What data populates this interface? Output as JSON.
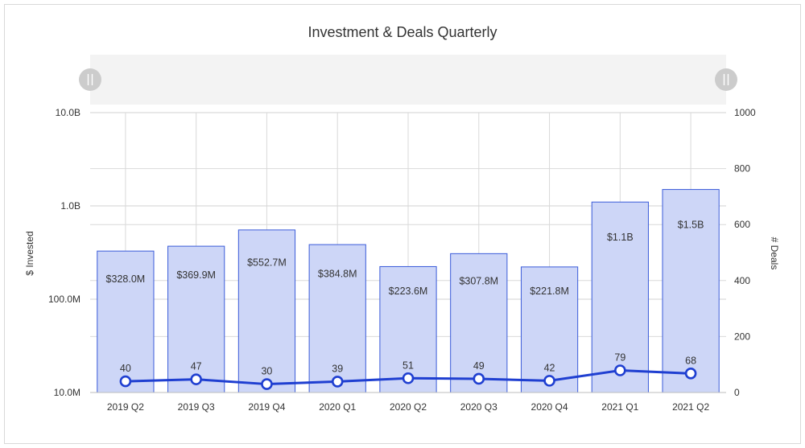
{
  "chart_data": {
    "type": "bar",
    "title": "Investment & Deals Quarterly",
    "categories": [
      "2019 Q2",
      "2019 Q3",
      "2019 Q4",
      "2020 Q1",
      "2020 Q2",
      "2020 Q3",
      "2020 Q4",
      "2021 Q1",
      "2021 Q2"
    ],
    "series": [
      {
        "type": "bar",
        "axis": "left",
        "scale": "log",
        "values": [
          328000000,
          369900000,
          552700000,
          384800000,
          223600000,
          307800000,
          221800000,
          1100000000,
          1500000000
        ],
        "labels": [
          "$328.0M",
          "$369.9M",
          "$552.7M",
          "$384.8M",
          "$223.6M",
          "$307.8M",
          "$221.8M",
          "$1.1B",
          "$1.5B"
        ],
        "color": "#cdd6f7",
        "border_color": "#3a5bd9"
      },
      {
        "type": "line",
        "axis": "right",
        "values": [
          40,
          47,
          30,
          39,
          51,
          49,
          42,
          79,
          68
        ],
        "labels": [
          "40",
          "47",
          "30",
          "39",
          "51",
          "49",
          "42",
          "79",
          "68"
        ],
        "color": "#1f3fd1"
      }
    ],
    "y_left": {
      "label": "$ Invested",
      "scale": "log",
      "range": [
        10000000,
        10000000000
      ],
      "tick_values": [
        10000000,
        100000000,
        1000000000,
        10000000000
      ],
      "tick_labels": [
        "10.0M",
        "100.0M",
        "1.0B",
        "10.0B"
      ]
    },
    "y_right": {
      "label": "# Deals",
      "range": [
        0,
        1000
      ],
      "tick_values": [
        0,
        200,
        400,
        600,
        800,
        1000
      ],
      "tick_labels": [
        "0",
        "200",
        "400",
        "600",
        "800",
        "1000"
      ]
    },
    "grid": true,
    "range_selector": {
      "present": true,
      "color": "#f3f3f3",
      "handle_color": "#cccccc"
    }
  }
}
